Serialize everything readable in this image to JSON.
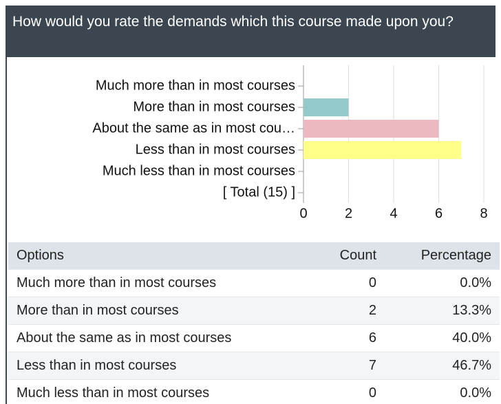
{
  "header": {
    "title": "How would you rate the demands which this course made upon you?"
  },
  "chart_data": {
    "type": "hbar",
    "categories": [
      "Much more than in most courses",
      "More than in most courses",
      "About the same as in most cou…",
      "Less than in most courses",
      "Much less than in most courses",
      "[ Total (15) ]"
    ],
    "values": [
      0,
      2,
      6,
      7,
      0,
      null
    ],
    "colors": [
      null,
      "#92c9c9",
      "#edb9c1",
      "#ffff8a",
      null,
      null
    ],
    "xlim": [
      0,
      8
    ],
    "xticks": [
      0,
      2,
      4,
      6,
      8
    ],
    "grid": true
  },
  "table": {
    "header": [
      "Options",
      "Count",
      "Percentage"
    ],
    "rows": [
      [
        "Much more than in most courses",
        "0",
        "0.0%"
      ],
      [
        "More than in most courses",
        "2",
        "13.3%"
      ],
      [
        "About the same as in most courses",
        "6",
        "40.0%"
      ],
      [
        "Less than in most courses",
        "7",
        "46.7%"
      ],
      [
        "Much less than in most courses",
        "0",
        "0.0%"
      ]
    ]
  }
}
